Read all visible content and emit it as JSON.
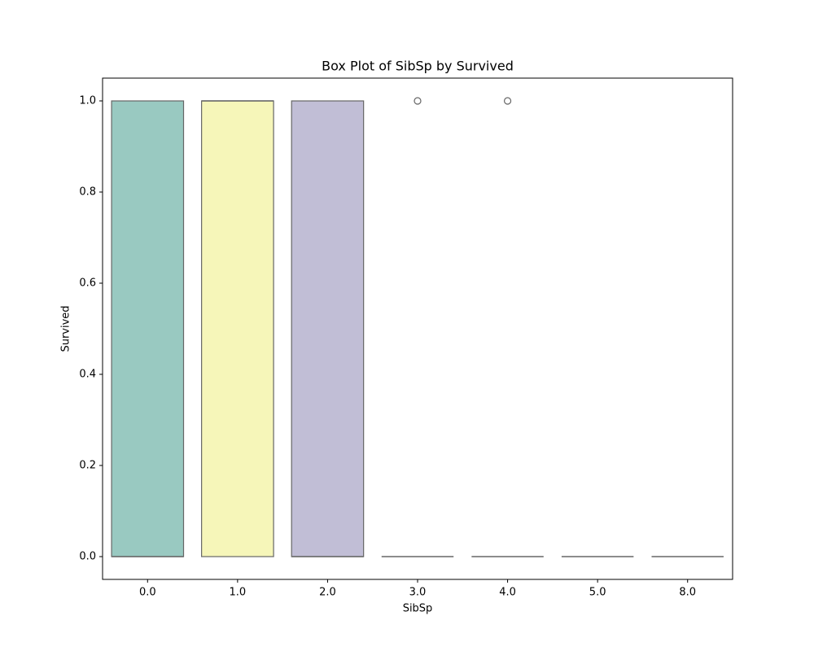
{
  "chart_data": {
    "type": "box",
    "title": "Box Plot of SibSp by Survived",
    "x_label": "SibSp",
    "y_label": "Survived",
    "categories": [
      "0.0",
      "1.0",
      "2.0",
      "3.0",
      "4.0",
      "5.0",
      "8.0"
    ],
    "colors": [
      "#99c9c1",
      "#f6f6b9",
      "#c1bed6",
      "#e8978d",
      "#95b5cc",
      "#f0b676",
      "#b5d47f"
    ],
    "boxes": [
      {
        "min": 0,
        "q1": 0,
        "median": 0,
        "q3": 1,
        "max": 1,
        "outliers": []
      },
      {
        "min": 0,
        "q1": 0,
        "median": 1,
        "q3": 1,
        "max": 1,
        "outliers": []
      },
      {
        "min": 0,
        "q1": 0,
        "median": 0,
        "q3": 1,
        "max": 1,
        "outliers": []
      },
      {
        "min": 0,
        "q1": 0,
        "median": 0,
        "q3": 0,
        "max": 0,
        "outliers": [
          1
        ]
      },
      {
        "min": 0,
        "q1": 0,
        "median": 0,
        "q3": 0,
        "max": 0,
        "outliers": [
          1
        ]
      },
      {
        "min": 0,
        "q1": 0,
        "median": 0,
        "q3": 0,
        "max": 0,
        "outliers": []
      },
      {
        "min": 0,
        "q1": 0,
        "median": 0,
        "q3": 0,
        "max": 0,
        "outliers": []
      }
    ],
    "ylim": [
      -0.05,
      1.05
    ],
    "yticks": [
      {
        "value": 0,
        "label": "0.0"
      },
      {
        "value": 0.2,
        "label": "0.2"
      },
      {
        "value": 0.4,
        "label": "0.4"
      },
      {
        "value": 0.6,
        "label": "0.6"
      },
      {
        "value": 0.8,
        "label": "0.8"
      },
      {
        "value": 1,
        "label": "1.0"
      }
    ],
    "grid": false
  }
}
